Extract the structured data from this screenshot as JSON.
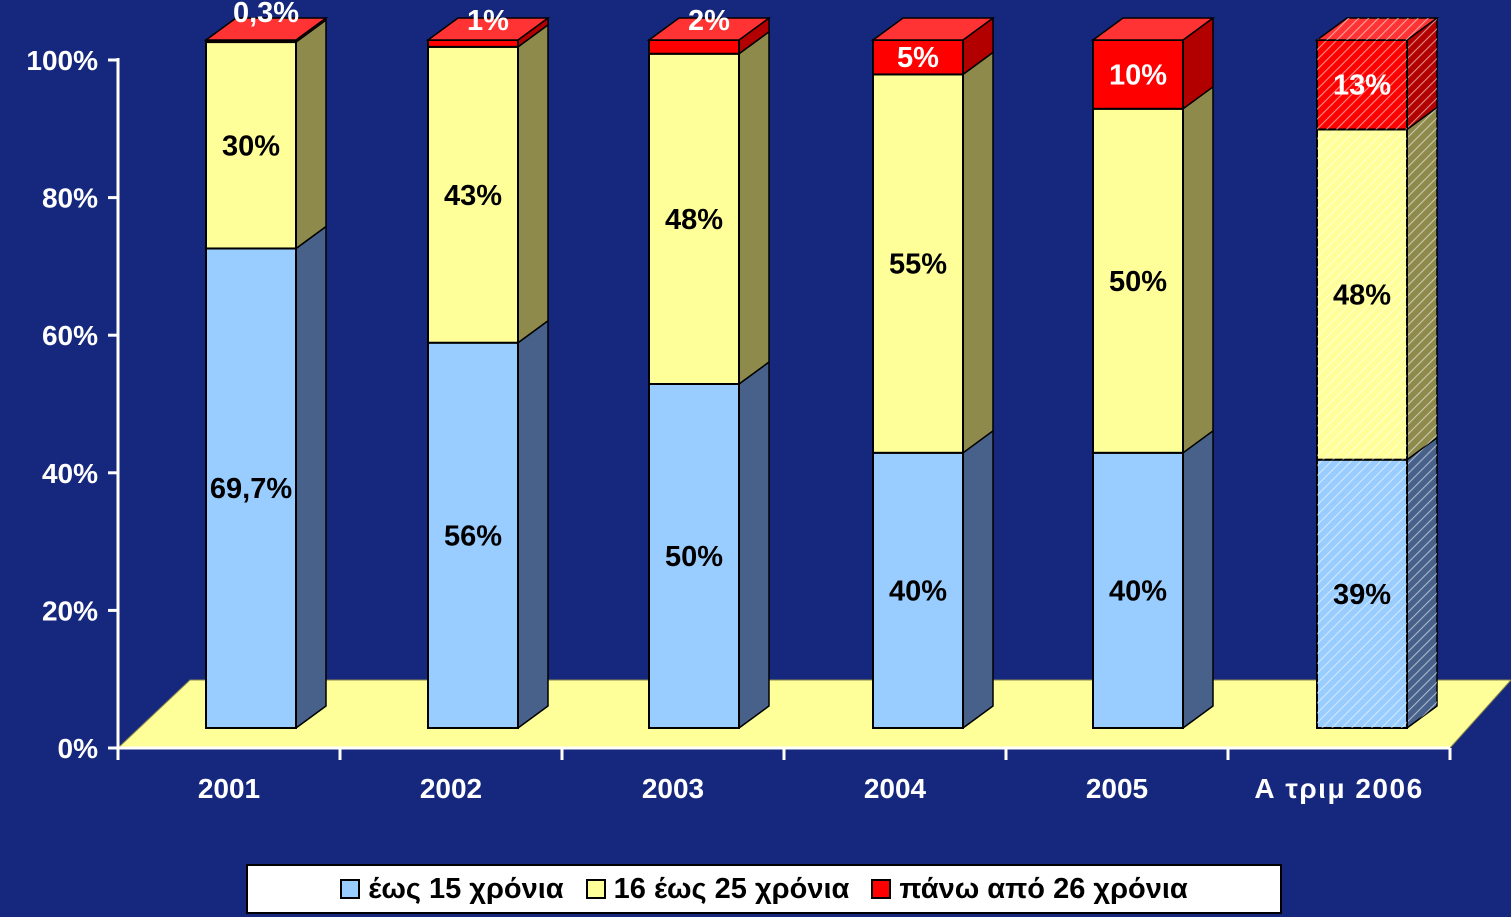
{
  "chart_data": {
    "type": "bar",
    "stacked": true,
    "three_d": true,
    "categories": [
      "2001",
      "2002",
      "2003",
      "2004",
      "2005",
      "Α τριμ 2006"
    ],
    "series": [
      {
        "name": "έως 15 χρόνια",
        "color": "#99ccff",
        "values": [
          69.7,
          56,
          50,
          40,
          40,
          39
        ],
        "labels": [
          "69,7%",
          "56%",
          "50%",
          "40%",
          "40%",
          "39%"
        ]
      },
      {
        "name": "16 έως 25 χρόνια",
        "color": "#ffff99",
        "values": [
          30,
          43,
          48,
          55,
          50,
          48
        ],
        "labels": [
          "30%",
          "43%",
          "48%",
          "55%",
          "50%",
          "48%"
        ]
      },
      {
        "name": "πάνω από 26 χρόνια",
        "color": "#ff0000",
        "values": [
          0.3,
          1,
          2,
          5,
          10,
          13
        ],
        "labels": [
          "0,3%",
          "1%",
          "2%",
          "5%",
          "10%",
          "13%"
        ]
      }
    ],
    "hatched_categories": [
      "Α τριμ 2006"
    ],
    "y_ticks": [
      "0%",
      "20%",
      "40%",
      "60%",
      "80%",
      "100%"
    ],
    "ylim": [
      0,
      100
    ],
    "title": "",
    "xlabel": "",
    "ylabel": "",
    "legend_position": "bottom-center",
    "grid": false,
    "floor_color": "#ffff99",
    "axis_color": "#ffffff",
    "background_color": "#16287e"
  }
}
